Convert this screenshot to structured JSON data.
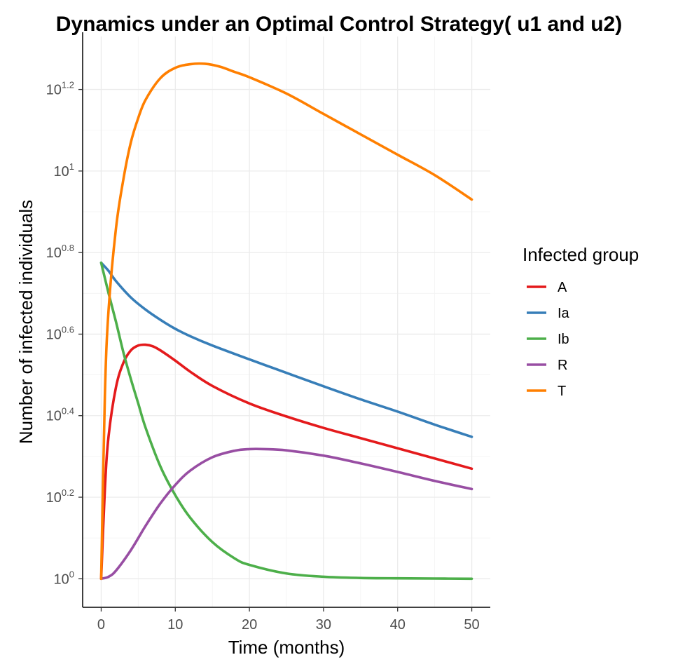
{
  "chart_data": {
    "type": "line",
    "title": "Dynamics under an Optimal Control Strategy( u1 and u2)",
    "xlabel": "Time (months)",
    "ylabel": "Number of infected individuals",
    "xlim": [
      -2.5,
      52.5
    ],
    "ylim_log10": [
      -0.07,
      1.33
    ],
    "y_scale": "log10",
    "x_ticks": [
      {
        "value": 0,
        "label": "0"
      },
      {
        "value": 10,
        "label": "10"
      },
      {
        "value": 20,
        "label": "20"
      },
      {
        "value": 30,
        "label": "30"
      },
      {
        "value": 40,
        "label": "40"
      },
      {
        "value": 50,
        "label": "50"
      }
    ],
    "y_ticks": [
      {
        "exp": 0,
        "base": "10",
        "sup": "0"
      },
      {
        "exp": 0.2,
        "base": "10",
        "sup": "0.2"
      },
      {
        "exp": 0.4,
        "base": "10",
        "sup": "0.4"
      },
      {
        "exp": 0.6,
        "base": "10",
        "sup": "0.6"
      },
      {
        "exp": 0.8,
        "base": "10",
        "sup": "0.8"
      },
      {
        "exp": 1,
        "base": "10",
        "sup": "1"
      },
      {
        "exp": 1.2,
        "base": "10",
        "sup": "1.2"
      }
    ],
    "legend": {
      "title": "Infected group",
      "position": "right"
    },
    "series": [
      {
        "name": "A",
        "color": "#e41a1c",
        "x": [
          0,
          0.5,
          1,
          2,
          3,
          4,
          5,
          6,
          7,
          8,
          10,
          12,
          15,
          20,
          25,
          30,
          35,
          40,
          45,
          50
        ],
        "log10_y": [
          0.0,
          0.22,
          0.35,
          0.47,
          0.53,
          0.56,
          0.572,
          0.574,
          0.57,
          0.56,
          0.535,
          0.508,
          0.473,
          0.43,
          0.398,
          0.37,
          0.345,
          0.32,
          0.295,
          0.27
        ]
      },
      {
        "name": "Ia",
        "color": "#377eb8",
        "x": [
          0,
          1,
          2,
          4,
          6,
          8,
          10,
          12,
          15,
          20,
          25,
          30,
          35,
          40,
          45,
          50
        ],
        "log10_y": [
          0.775,
          0.755,
          0.73,
          0.69,
          0.66,
          0.635,
          0.613,
          0.595,
          0.572,
          0.538,
          0.505,
          0.472,
          0.44,
          0.41,
          0.378,
          0.348
        ]
      },
      {
        "name": "Ib",
        "color": "#4daf4a",
        "x": [
          0,
          1,
          2,
          3,
          4,
          5,
          6,
          8,
          10,
          12,
          15,
          18,
          20,
          25,
          30,
          35,
          40,
          45,
          50
        ],
        "log10_y": [
          0.775,
          0.7,
          0.63,
          0.555,
          0.49,
          0.43,
          0.37,
          0.275,
          0.205,
          0.15,
          0.09,
          0.05,
          0.034,
          0.013,
          0.005,
          0.002,
          0.001,
          0.0005,
          0.0
        ]
      },
      {
        "name": "R",
        "color": "#984ea3",
        "x": [
          0,
          1,
          2,
          4,
          6,
          8,
          10,
          12,
          15,
          18,
          20,
          22,
          25,
          30,
          35,
          40,
          45,
          50
        ],
        "log10_y": [
          0.0,
          0.005,
          0.02,
          0.07,
          0.13,
          0.185,
          0.23,
          0.265,
          0.298,
          0.314,
          0.318,
          0.318,
          0.315,
          0.302,
          0.283,
          0.262,
          0.24,
          0.22
        ]
      },
      {
        "name": "T",
        "color": "#ff7f00",
        "x": [
          0,
          0.5,
          1,
          2,
          3,
          4,
          5,
          6,
          8,
          10,
          12,
          14,
          16,
          18,
          20,
          25,
          30,
          35,
          40,
          45,
          50
        ],
        "log10_y": [
          0.0,
          0.45,
          0.66,
          0.86,
          0.98,
          1.07,
          1.13,
          1.175,
          1.228,
          1.253,
          1.262,
          1.263,
          1.256,
          1.243,
          1.23,
          1.19,
          1.14,
          1.09,
          1.04,
          0.99,
          0.93
        ]
      }
    ]
  }
}
